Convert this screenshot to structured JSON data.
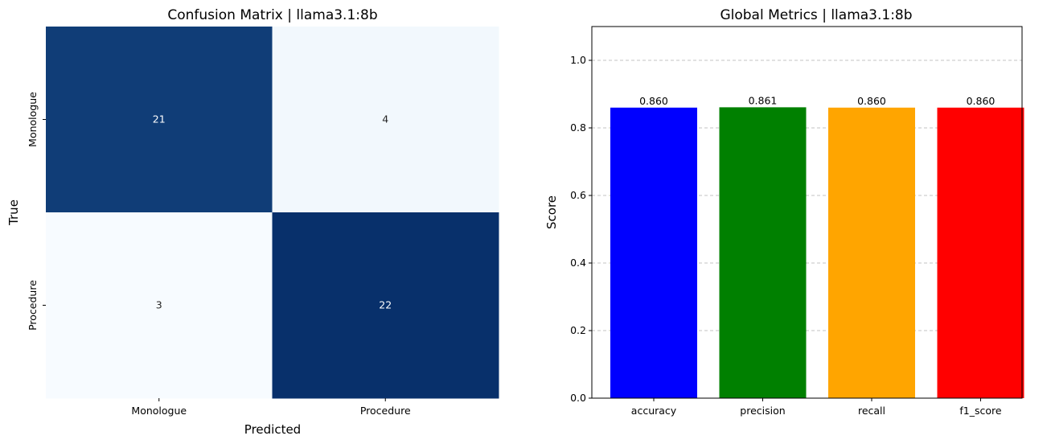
{
  "chart_data": [
    {
      "type": "heatmap",
      "title": "Confusion Matrix | llama3.1:8b",
      "xlabel": "Predicted",
      "ylabel": "True",
      "x_categories": [
        "Monologue",
        "Procedure"
      ],
      "y_categories": [
        "Monologue",
        "Procedure"
      ],
      "values": [
        [
          21,
          4
        ],
        [
          3,
          22
        ]
      ],
      "colormap": "Blues",
      "colors": {
        "low": "#f7fbff",
        "mid_low": "#eaf2fb",
        "high": "#08306b",
        "mid_high": "#083d7f",
        "text_dark": "#262626",
        "text_light": "#ffffff"
      },
      "colorbar": false
    },
    {
      "type": "bar",
      "title": "Global Metrics | llama3.1:8b",
      "xlabel": "",
      "ylabel": "Score",
      "categories": [
        "accuracy",
        "precision",
        "recall",
        "f1_score"
      ],
      "values": [
        0.86,
        0.861,
        0.86,
        0.86
      ],
      "value_labels": [
        "0.860",
        "0.861",
        "0.860",
        "0.860"
      ],
      "bar_colors": [
        "#0000ff",
        "#008000",
        "#ffa500",
        "#ff0000"
      ],
      "ylim": [
        0,
        1.1
      ],
      "yticks": [
        "0.0",
        "0.2",
        "0.4",
        "0.6",
        "0.8",
        "1.0"
      ],
      "ytick_values": [
        0,
        0.2,
        0.4,
        0.6,
        0.8,
        1.0
      ],
      "grid": "y-dashed",
      "grid_color": "#b0b0b0"
    }
  ]
}
